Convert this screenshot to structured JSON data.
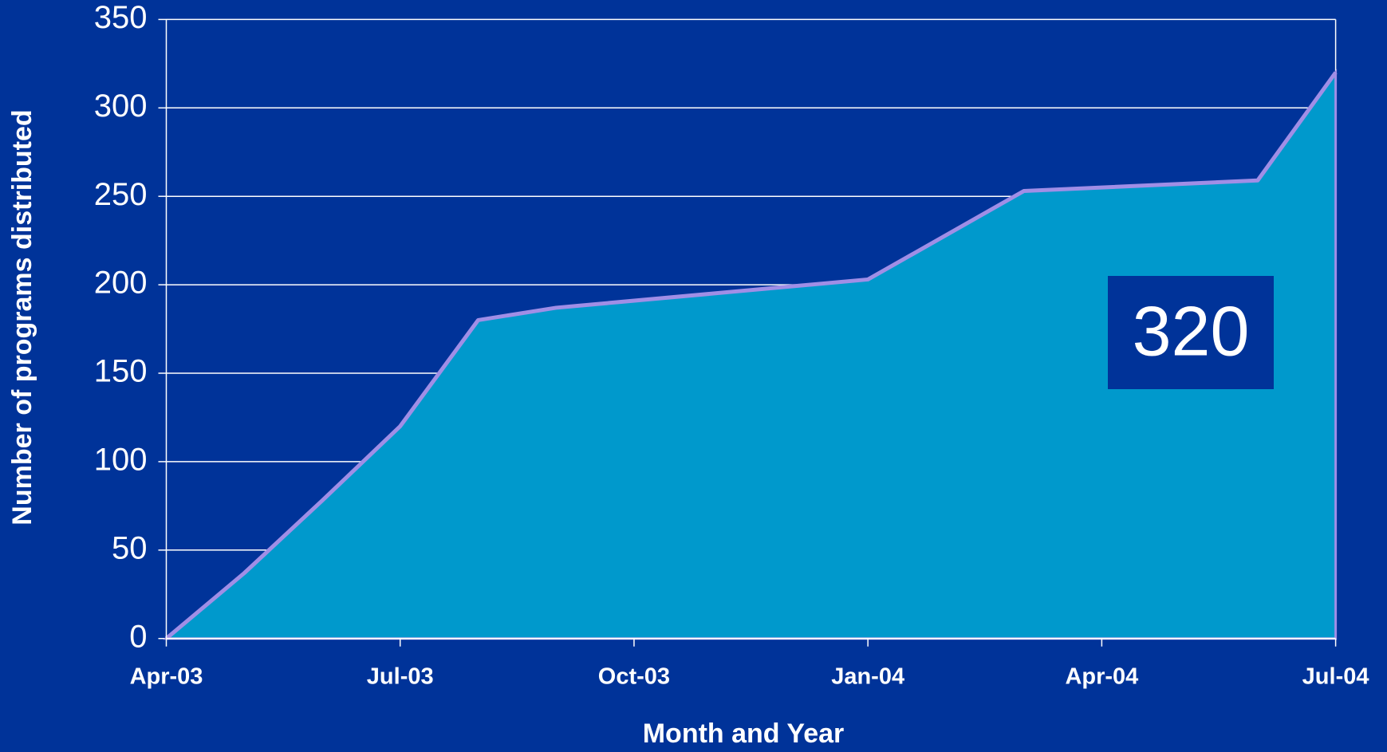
{
  "chart_data": {
    "type": "area",
    "x_label": "Month and Year",
    "y_label": "Number of programs distributed",
    "annotation": "320",
    "x": [
      "2003-04",
      "2003-05",
      "2003-06",
      "2003-07",
      "2003-08",
      "2003-09",
      "2004-01",
      "2004-03",
      "2004-06",
      "2004-07"
    ],
    "series": [
      {
        "name": "Programs distributed",
        "color": "#0099cc",
        "line_color": "#a08ee6",
        "values": [
          0,
          37,
          78,
          120,
          180,
          187,
          203,
          253,
          259,
          320
        ]
      }
    ],
    "xlim": [
      "2003-04",
      "2004-07"
    ],
    "xticks": [
      {
        "value": "2003-04",
        "label": "Apr-03"
      },
      {
        "value": "2003-07",
        "label": "Jul-03"
      },
      {
        "value": "2003-10",
        "label": "Oct-03"
      },
      {
        "value": "2004-01",
        "label": "Jan-04"
      },
      {
        "value": "2004-04",
        "label": "Apr-04"
      },
      {
        "value": "2004-07",
        "label": "Jul-04"
      }
    ],
    "ylim": [
      0,
      350
    ],
    "yticks": [
      0,
      50,
      100,
      150,
      200,
      250,
      300,
      350
    ],
    "grid": true
  }
}
